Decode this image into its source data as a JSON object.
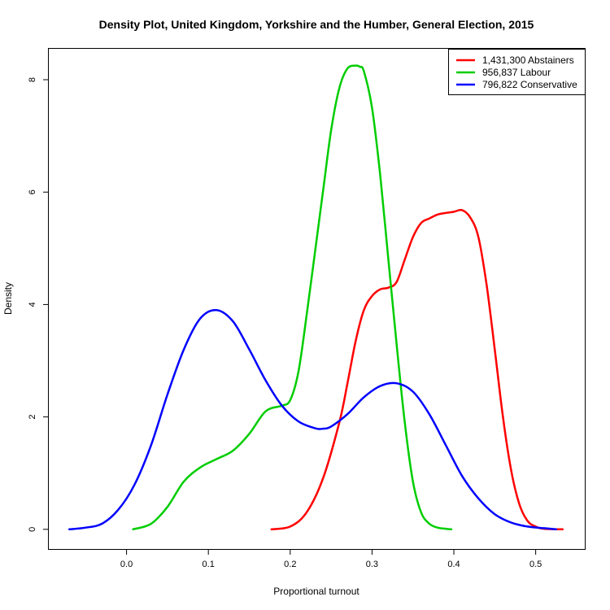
{
  "chart_data": {
    "type": "line",
    "title": "Density Plot, United Kingdom, Yorkshire and the Humber, General Election, 2015",
    "xlabel": "Proportional turnout",
    "ylabel": "Density",
    "xlim": [
      -0.095,
      0.56
    ],
    "ylim": [
      -0.35,
      8.55
    ],
    "x_ticks": [
      0.0,
      0.1,
      0.2,
      0.3,
      0.4,
      0.5
    ],
    "x_tick_labels": [
      "0.0",
      "0.1",
      "0.2",
      "0.3",
      "0.4",
      "0.5"
    ],
    "y_ticks": [
      0,
      2,
      4,
      6,
      8
    ],
    "y_tick_labels": [
      "0",
      "2",
      "4",
      "6",
      "8"
    ],
    "legend_position": "top-right",
    "grid": false,
    "series": [
      {
        "name": "1,431,300 Abstainers",
        "color": "#ff0000",
        "x": [
          0.177,
          0.2,
          0.22,
          0.24,
          0.26,
          0.27,
          0.28,
          0.29,
          0.3,
          0.31,
          0.32,
          0.33,
          0.34,
          0.35,
          0.36,
          0.37,
          0.38,
          0.39,
          0.4,
          0.41,
          0.42,
          0.43,
          0.44,
          0.45,
          0.46,
          0.47,
          0.48,
          0.49,
          0.5,
          0.51,
          0.533
        ],
        "y": [
          0.0,
          0.05,
          0.3,
          0.9,
          1.9,
          2.6,
          3.35,
          3.9,
          4.15,
          4.27,
          4.3,
          4.4,
          4.8,
          5.2,
          5.45,
          5.53,
          5.6,
          5.63,
          5.65,
          5.68,
          5.55,
          5.2,
          4.35,
          3.2,
          2.0,
          1.05,
          0.45,
          0.15,
          0.05,
          0.01,
          0.0
        ]
      },
      {
        "name": "956,837 Labour",
        "color": "#00cd00",
        "x": [
          0.008,
          0.03,
          0.05,
          0.07,
          0.09,
          0.11,
          0.13,
          0.15,
          0.17,
          0.19,
          0.2,
          0.21,
          0.22,
          0.23,
          0.24,
          0.25,
          0.26,
          0.27,
          0.28,
          0.285,
          0.29,
          0.3,
          0.31,
          0.32,
          0.33,
          0.34,
          0.35,
          0.36,
          0.37,
          0.38,
          0.39,
          0.397
        ],
        "y": [
          0.0,
          0.1,
          0.4,
          0.85,
          1.1,
          1.25,
          1.4,
          1.7,
          2.1,
          2.2,
          2.3,
          2.8,
          3.8,
          4.9,
          6.0,
          7.1,
          7.85,
          8.2,
          8.25,
          8.23,
          8.15,
          7.5,
          6.3,
          4.8,
          3.3,
          1.9,
          0.85,
          0.3,
          0.1,
          0.03,
          0.01,
          0.0
        ]
      },
      {
        "name": "796,822 Conservative",
        "color": "#0000ff",
        "x": [
          -0.07,
          -0.05,
          -0.03,
          -0.01,
          0.01,
          0.03,
          0.05,
          0.07,
          0.09,
          0.11,
          0.13,
          0.15,
          0.17,
          0.19,
          0.21,
          0.23,
          0.24,
          0.25,
          0.27,
          0.29,
          0.31,
          0.33,
          0.35,
          0.37,
          0.39,
          0.41,
          0.43,
          0.45,
          0.47,
          0.49,
          0.51,
          0.525
        ],
        "y": [
          0.0,
          0.03,
          0.1,
          0.35,
          0.8,
          1.5,
          2.4,
          3.2,
          3.75,
          3.9,
          3.7,
          3.2,
          2.65,
          2.2,
          1.92,
          1.8,
          1.79,
          1.83,
          2.05,
          2.35,
          2.55,
          2.6,
          2.45,
          2.05,
          1.5,
          0.95,
          0.55,
          0.27,
          0.12,
          0.05,
          0.02,
          0.0
        ]
      }
    ]
  }
}
